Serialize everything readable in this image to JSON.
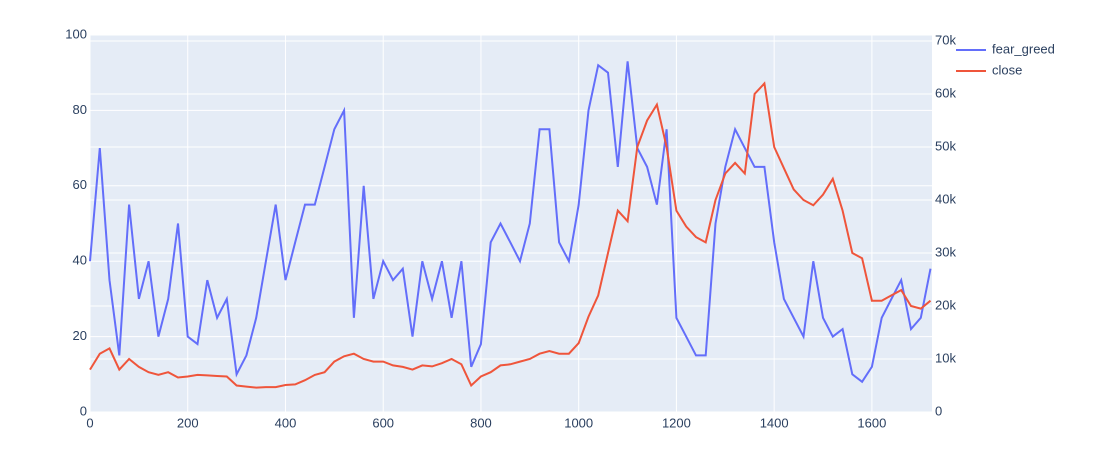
{
  "chart_data": {
    "type": "line",
    "x": [
      0,
      20,
      40,
      60,
      80,
      100,
      120,
      140,
      160,
      180,
      200,
      220,
      240,
      260,
      280,
      300,
      320,
      340,
      360,
      380,
      400,
      420,
      440,
      460,
      480,
      500,
      520,
      540,
      560,
      580,
      600,
      620,
      640,
      660,
      680,
      700,
      720,
      740,
      760,
      780,
      800,
      820,
      840,
      860,
      880,
      900,
      920,
      940,
      960,
      980,
      1000,
      1020,
      1040,
      1060,
      1080,
      1100,
      1120,
      1140,
      1160,
      1180,
      1200,
      1220,
      1240,
      1260,
      1280,
      1300,
      1320,
      1340,
      1360,
      1380,
      1400,
      1420,
      1440,
      1460,
      1480,
      1500,
      1520,
      1540,
      1560,
      1580,
      1600,
      1620,
      1640,
      1660,
      1680,
      1700,
      1720
    ],
    "series": [
      {
        "name": "fear_greed",
        "color": "#636efa",
        "values": [
          40,
          70,
          35,
          15,
          55,
          30,
          40,
          20,
          30,
          50,
          20,
          18,
          35,
          25,
          30,
          10,
          15,
          25,
          40,
          55,
          35,
          45,
          55,
          55,
          65,
          75,
          80,
          25,
          60,
          30,
          40,
          35,
          38,
          20,
          40,
          30,
          40,
          25,
          40,
          12,
          18,
          45,
          50,
          45,
          40,
          50,
          75,
          75,
          45,
          40,
          55,
          80,
          92,
          90,
          65,
          93,
          70,
          65,
          55,
          75,
          25,
          20,
          15,
          15,
          50,
          65,
          75,
          70,
          65,
          65,
          45,
          30,
          25,
          20,
          40,
          25,
          20,
          22,
          10,
          8,
          12,
          25,
          30,
          35,
          22,
          25,
          38
        ]
      },
      {
        "name": "close",
        "color": "#EF553B",
        "axis": "y2",
        "values": [
          8000,
          11000,
          12000,
          8000,
          10000,
          8500,
          7500,
          7000,
          7500,
          6500,
          6700,
          7000,
          6900,
          6800,
          6700,
          5000,
          4800,
          4600,
          4700,
          4700,
          5100,
          5200,
          6000,
          7000,
          7500,
          9500,
          10500,
          11000,
          10000,
          9500,
          9500,
          8800,
          8500,
          8000,
          8800,
          8600,
          9200,
          10000,
          9000,
          5000,
          6700,
          7500,
          8800,
          9000,
          9500,
          10000,
          11000,
          11500,
          11000,
          11000,
          13000,
          18000,
          22000,
          30000,
          38000,
          36000,
          50000,
          55000,
          58000,
          50000,
          38000,
          35000,
          33000,
          32000,
          40000,
          45000,
          47000,
          45000,
          60000,
          62000,
          50000,
          46000,
          42000,
          40000,
          39000,
          41000,
          44000,
          38000,
          30000,
          29000,
          21000,
          21000,
          22000,
          23000,
          20000,
          19500,
          21000
        ]
      }
    ],
    "xlim": [
      0,
      1723
    ],
    "xticks": [
      0,
      200,
      400,
      600,
      800,
      1000,
      1200,
      1400,
      1600
    ],
    "ylim": [
      0,
      100
    ],
    "yticks": [
      0,
      20,
      40,
      60,
      80,
      100
    ],
    "y2lim": [
      0,
      71132
    ],
    "y2ticks": [
      0,
      {
        "value": 10000,
        "label": "10k"
      },
      {
        "value": 20000,
        "label": "20k"
      },
      {
        "value": 30000,
        "label": "30k"
      },
      {
        "value": 40000,
        "label": "40k"
      },
      {
        "value": 50000,
        "label": "50k"
      },
      {
        "value": 60000,
        "label": "60k"
      },
      {
        "value": 70000,
        "label": "70k"
      }
    ],
    "grid": true,
    "legend": "top-right"
  }
}
